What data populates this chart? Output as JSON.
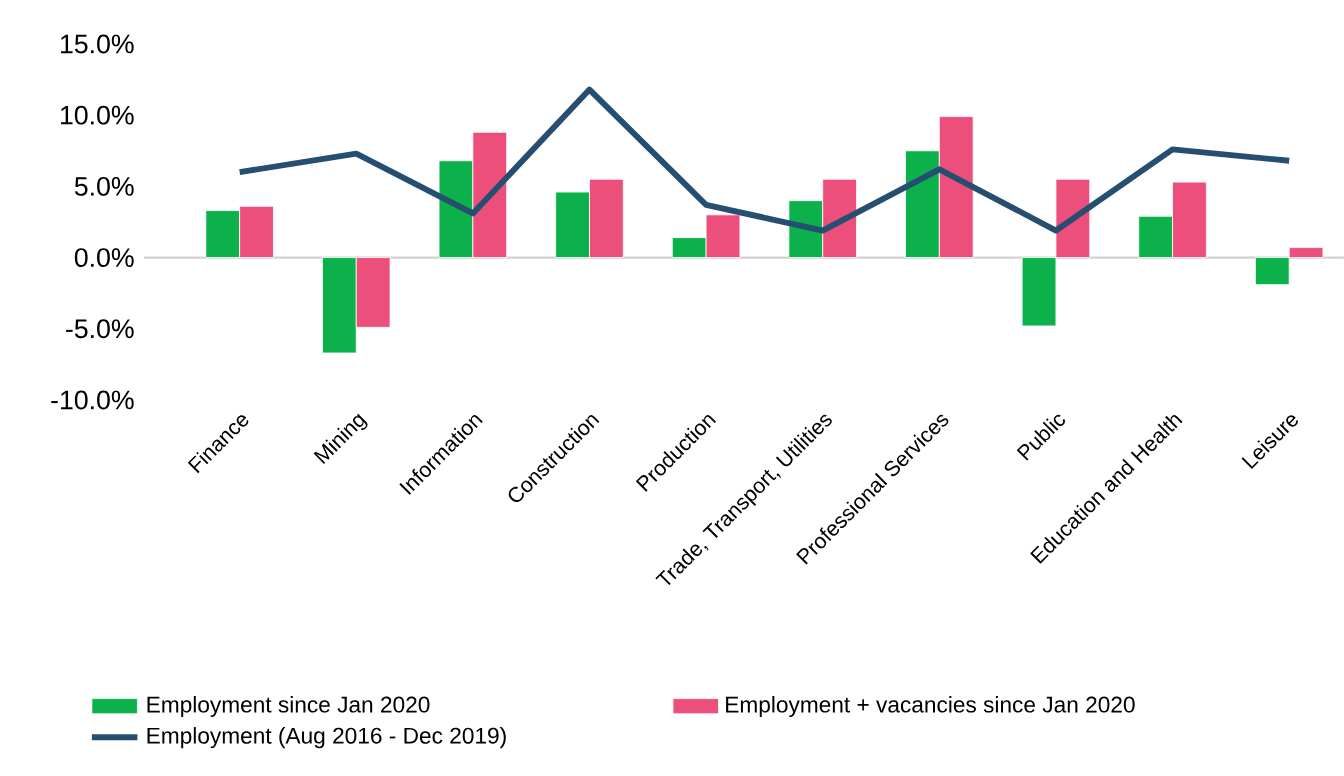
{
  "chart_data": {
    "type": "bar",
    "categories": [
      "Finance",
      "Mining",
      "Information",
      "Construction",
      "Production",
      "Trade, Transport, Utilities",
      "Professional Services",
      "Public",
      "Education and Health",
      "Leisure"
    ],
    "series": [
      {
        "name": "Employment since Jan 2020",
        "color": "#0db14b",
        "values": [
          3.3,
          -6.7,
          6.8,
          4.6,
          1.4,
          4.0,
          7.5,
          -4.8,
          2.9,
          -1.9
        ]
      },
      {
        "name": "Employment + vacancies since Jan 2020",
        "color": "#ec4f7c",
        "values": [
          3.6,
          -4.9,
          8.8,
          5.5,
          3.0,
          5.5,
          9.9,
          5.5,
          5.3,
          0.7
        ]
      },
      {
        "name": "Employment (Aug 2016 - Dec 2019)",
        "color": "#254e70",
        "type": "line",
        "values": [
          6.0,
          7.3,
          3.1,
          11.8,
          3.7,
          1.9,
          6.2,
          1.9,
          7.6,
          6.8
        ]
      }
    ],
    "ylim": [
      -10,
      15
    ],
    "yticks": [
      {
        "value": -10,
        "label": "-10.0%"
      },
      {
        "value": -5,
        "label": "-5.0%"
      },
      {
        "value": 0,
        "label": "0.0%"
      },
      {
        "value": 5,
        "label": "5.0%"
      },
      {
        "value": 10,
        "label": "10.0%"
      },
      {
        "value": 15,
        "label": "15.0%"
      }
    ],
    "legend": "bottom",
    "marker": "none",
    "line_style": "solid"
  }
}
